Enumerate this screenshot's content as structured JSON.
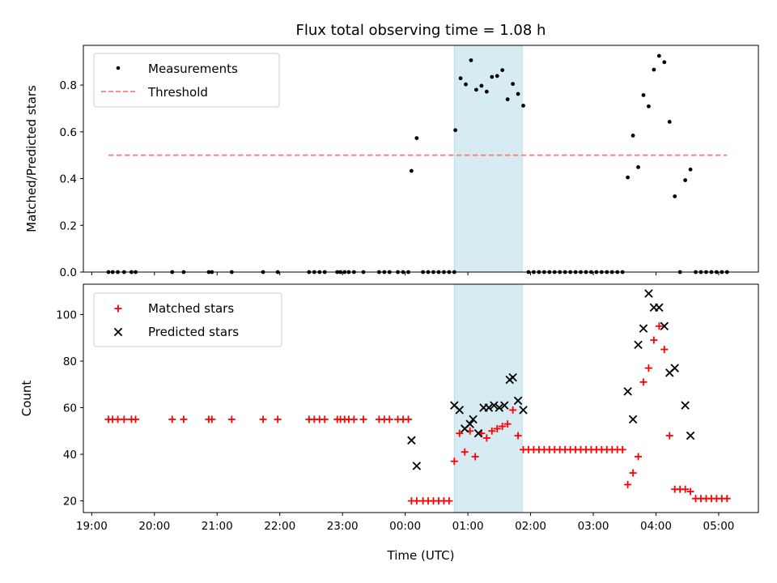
{
  "chart_data": [
    {
      "type": "scatter",
      "title": "Flux total observing time = 1.08 h",
      "xlabel": "",
      "ylabel": "Matched/Predicted stars",
      "xlim": [
        "18:52",
        "05:38"
      ],
      "ylim": [
        0,
        0.97
      ],
      "yticks": [
        0.0,
        0.2,
        0.4,
        0.6,
        0.8
      ],
      "ytick_labels": [
        "0.0",
        "0.2",
        "0.4",
        "0.6",
        "0.8"
      ],
      "grid": false,
      "legend": "upper-left",
      "shaded_span": {
        "x0": "00:47",
        "x1": "01:52",
        "color": "#add8e6"
      },
      "series": [
        {
          "name": "Measurements",
          "marker": "dot",
          "color": "#000000",
          "points": [
            [
              "19:16",
              0
            ],
            [
              "19:20",
              0
            ],
            [
              "19:25",
              0
            ],
            [
              "19:31",
              0
            ],
            [
              "19:38",
              0
            ],
            [
              "19:42",
              0
            ],
            [
              "20:17",
              0
            ],
            [
              "20:28",
              0
            ],
            [
              "20:52",
              0
            ],
            [
              "20:55",
              0
            ],
            [
              "21:14",
              0
            ],
            [
              "21:44",
              0
            ],
            [
              "21:58",
              0
            ],
            [
              "22:28",
              0
            ],
            [
              "22:33",
              0
            ],
            [
              "22:38",
              0
            ],
            [
              "22:43",
              0
            ],
            [
              "22:55",
              0
            ],
            [
              "22:58",
              0
            ],
            [
              "23:02",
              0
            ],
            [
              "23:06",
              0
            ],
            [
              "23:11",
              0
            ],
            [
              "23:20",
              0
            ],
            [
              "23:35",
              0
            ],
            [
              "23:40",
              0
            ],
            [
              "23:45",
              0
            ],
            [
              "23:53",
              0
            ],
            [
              "23:58",
              0
            ],
            [
              "00:03",
              0
            ],
            [
              "00:06",
              0.433
            ],
            [
              "00:11",
              0.573
            ],
            [
              "00:17",
              0
            ],
            [
              "00:22",
              0
            ],
            [
              "00:27",
              0
            ],
            [
              "00:32",
              0
            ],
            [
              "00:37",
              0
            ],
            [
              "00:42",
              0
            ],
            [
              "00:47",
              0
            ],
            [
              "00:48",
              0.607
            ],
            [
              "00:53",
              0.829
            ],
            [
              "00:58",
              0.803
            ],
            [
              "01:03",
              0.906
            ],
            [
              "01:08",
              0.78
            ],
            [
              "01:13",
              0.797
            ],
            [
              "01:18",
              0.772
            ],
            [
              "01:23",
              0.835
            ],
            [
              "01:28",
              0.839
            ],
            [
              "01:33",
              0.864
            ],
            [
              "01:38",
              0.739
            ],
            [
              "01:43",
              0.805
            ],
            [
              "01:48",
              0.762
            ],
            [
              "01:53",
              0.712
            ],
            [
              "01:58",
              0
            ],
            [
              "02:03",
              0
            ],
            [
              "02:08",
              0
            ],
            [
              "02:13",
              0
            ],
            [
              "02:18",
              0
            ],
            [
              "02:23",
              0
            ],
            [
              "02:28",
              0
            ],
            [
              "02:33",
              0
            ],
            [
              "02:38",
              0
            ],
            [
              "02:43",
              0
            ],
            [
              "02:48",
              0
            ],
            [
              "02:53",
              0
            ],
            [
              "02:58",
              0
            ],
            [
              "03:03",
              0
            ],
            [
              "03:08",
              0
            ],
            [
              "03:13",
              0
            ],
            [
              "03:18",
              0
            ],
            [
              "03:23",
              0
            ],
            [
              "03:28",
              0
            ],
            [
              "03:33",
              0.405
            ],
            [
              "03:38",
              0.584
            ],
            [
              "03:43",
              0.449
            ],
            [
              "03:48",
              0.757
            ],
            [
              "03:53",
              0.709
            ],
            [
              "03:58",
              0.866
            ],
            [
              "04:03",
              0.925
            ],
            [
              "04:08",
              0.898
            ],
            [
              "04:13",
              0.643
            ],
            [
              "04:18",
              0.324
            ],
            [
              "04:23",
              0
            ],
            [
              "04:28",
              0.393
            ],
            [
              "04:33",
              0.439
            ],
            [
              "04:38",
              0
            ],
            [
              "04:43",
              0
            ],
            [
              "04:48",
              0
            ],
            [
              "04:53",
              0
            ],
            [
              "04:58",
              0
            ],
            [
              "05:03",
              0
            ],
            [
              "05:08",
              0
            ]
          ]
        },
        {
          "name": "Threshold",
          "type": "line",
          "style": "dashed",
          "color": "#ff7f7f",
          "points": [
            [
              "19:16",
              0.5
            ],
            [
              "05:08",
              0.5
            ]
          ]
        }
      ]
    },
    {
      "type": "scatter",
      "title": "",
      "xlabel": "Time (UTC)",
      "ylabel": "Count",
      "xlim": [
        "18:52",
        "05:38"
      ],
      "ylim": [
        15,
        113
      ],
      "yticks": [
        20,
        40,
        60,
        80,
        100
      ],
      "ytick_labels": [
        "20",
        "40",
        "60",
        "80",
        "100"
      ],
      "xticks": [
        "19:00",
        "20:00",
        "21:00",
        "22:00",
        "23:00",
        "00:00",
        "01:00",
        "02:00",
        "03:00",
        "04:00",
        "05:00"
      ],
      "grid": false,
      "legend": "upper-left",
      "shaded_span": {
        "x0": "00:47",
        "x1": "01:52",
        "color": "#add8e6"
      },
      "series": [
        {
          "name": "Matched stars",
          "marker": "plus",
          "color": "#ff0000",
          "points": [
            [
              "19:16",
              55
            ],
            [
              "19:20",
              55
            ],
            [
              "19:25",
              55
            ],
            [
              "19:31",
              55
            ],
            [
              "19:38",
              55
            ],
            [
              "19:42",
              55
            ],
            [
              "20:17",
              55
            ],
            [
              "20:28",
              55
            ],
            [
              "20:52",
              55
            ],
            [
              "20:55",
              55
            ],
            [
              "21:14",
              55
            ],
            [
              "21:44",
              55
            ],
            [
              "21:58",
              55
            ],
            [
              "22:28",
              55
            ],
            [
              "22:33",
              55
            ],
            [
              "22:38",
              55
            ],
            [
              "22:43",
              55
            ],
            [
              "22:55",
              55
            ],
            [
              "22:58",
              55
            ],
            [
              "23:02",
              55
            ],
            [
              "23:06",
              55
            ],
            [
              "23:11",
              55
            ],
            [
              "23:20",
              55
            ],
            [
              "23:35",
              55
            ],
            [
              "23:40",
              55
            ],
            [
              "23:45",
              55
            ],
            [
              "23:53",
              55
            ],
            [
              "23:58",
              55
            ],
            [
              "00:03",
              55
            ],
            [
              "00:06",
              20
            ],
            [
              "00:11",
              20
            ],
            [
              "00:17",
              20
            ],
            [
              "00:22",
              20
            ],
            [
              "00:27",
              20
            ],
            [
              "00:32",
              20
            ],
            [
              "00:37",
              20
            ],
            [
              "00:42",
              20
            ],
            [
              "00:47",
              37
            ],
            [
              "00:52",
              49
            ],
            [
              "00:57",
              41
            ],
            [
              "01:02",
              50
            ],
            [
              "01:07",
              39
            ],
            [
              "01:13",
              49
            ],
            [
              "01:18",
              47
            ],
            [
              "01:23",
              50
            ],
            [
              "01:28",
              51
            ],
            [
              "01:33",
              52
            ],
            [
              "01:38",
              53
            ],
            [
              "01:43",
              59
            ],
            [
              "01:48",
              48
            ],
            [
              "01:53",
              42
            ],
            [
              "01:58",
              42
            ],
            [
              "02:03",
              42
            ],
            [
              "02:08",
              42
            ],
            [
              "02:13",
              42
            ],
            [
              "02:18",
              42
            ],
            [
              "02:23",
              42
            ],
            [
              "02:28",
              42
            ],
            [
              "02:33",
              42
            ],
            [
              "02:38",
              42
            ],
            [
              "02:43",
              42
            ],
            [
              "02:48",
              42
            ],
            [
              "02:53",
              42
            ],
            [
              "02:58",
              42
            ],
            [
              "03:03",
              42
            ],
            [
              "03:08",
              42
            ],
            [
              "03:13",
              42
            ],
            [
              "03:18",
              42
            ],
            [
              "03:23",
              42
            ],
            [
              "03:28",
              42
            ],
            [
              "03:33",
              27
            ],
            [
              "03:38",
              32
            ],
            [
              "03:43",
              39
            ],
            [
              "03:48",
              71
            ],
            [
              "03:53",
              77
            ],
            [
              "03:58",
              89
            ],
            [
              "04:03",
              95
            ],
            [
              "04:08",
              85
            ],
            [
              "04:13",
              48
            ],
            [
              "04:18",
              25
            ],
            [
              "04:23",
              25
            ],
            [
              "04:28",
              25
            ],
            [
              "04:33",
              24
            ],
            [
              "04:38",
              21
            ],
            [
              "04:43",
              21
            ],
            [
              "04:48",
              21
            ],
            [
              "04:53",
              21
            ],
            [
              "04:58",
              21
            ],
            [
              "05:03",
              21
            ],
            [
              "05:08",
              21
            ]
          ]
        },
        {
          "name": "Predicted stars",
          "marker": "x",
          "color": "#000000",
          "points": [
            [
              "00:06",
              46
            ],
            [
              "00:11",
              35
            ],
            [
              "00:47",
              61
            ],
            [
              "00:52",
              59
            ],
            [
              "00:57",
              51
            ],
            [
              "01:02",
              53
            ],
            [
              "01:05",
              55
            ],
            [
              "01:10",
              49
            ],
            [
              "01:15",
              60
            ],
            [
              "01:20",
              60
            ],
            [
              "01:25",
              61
            ],
            [
              "01:30",
              60
            ],
            [
              "01:35",
              61
            ],
            [
              "01:40",
              72
            ],
            [
              "01:43",
              73
            ],
            [
              "01:48",
              63
            ],
            [
              "01:53",
              59
            ],
            [
              "03:33",
              67
            ],
            [
              "03:38",
              55
            ],
            [
              "03:43",
              87
            ],
            [
              "03:48",
              94
            ],
            [
              "03:53",
              109
            ],
            [
              "03:58",
              103
            ],
            [
              "04:03",
              103
            ],
            [
              "04:08",
              95
            ],
            [
              "04:13",
              75
            ],
            [
              "04:18",
              77
            ],
            [
              "04:28",
              61
            ],
            [
              "04:33",
              48
            ]
          ]
        }
      ]
    }
  ]
}
